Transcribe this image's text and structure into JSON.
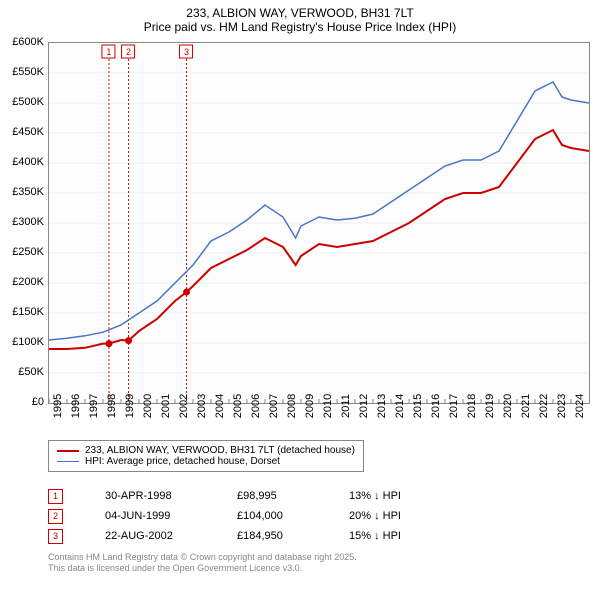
{
  "title": "233, ALBION WAY, VERWOOD, BH31 7LT",
  "subtitle": "Price paid vs. HM Land Registry's House Price Index (HPI)",
  "chart": {
    "type": "line",
    "background_color": "#ffffff",
    "grid_color": "#eeeeee",
    "border_color": "#888888",
    "ylim": [
      0,
      600
    ],
    "ytick_step": 50,
    "ytick_prefix": "£",
    "ytick_suffix": "K",
    "xlim": [
      1995,
      2025
    ],
    "xticks": [
      1995,
      1996,
      1997,
      1998,
      1999,
      2000,
      2001,
      2002,
      2003,
      2004,
      2005,
      2006,
      2007,
      2008,
      2009,
      2010,
      2011,
      2012,
      2013,
      2014,
      2015,
      2016,
      2017,
      2018,
      2019,
      2020,
      2021,
      2022,
      2023,
      2024
    ],
    "series": [
      {
        "name": "233, ALBION WAY, VERWOOD, BH31 7LT (detached house)",
        "color": "#cc0000",
        "line_width": 2,
        "data": [
          [
            1995,
            90
          ],
          [
            1996,
            90
          ],
          [
            1997,
            92
          ],
          [
            1998,
            99
          ],
          [
            1998.33,
            99
          ],
          [
            1999,
            105
          ],
          [
            1999.42,
            104
          ],
          [
            2000,
            120
          ],
          [
            2001,
            140
          ],
          [
            2002,
            170
          ],
          [
            2002.64,
            185
          ],
          [
            2003,
            195
          ],
          [
            2004,
            225
          ],
          [
            2005,
            240
          ],
          [
            2006,
            255
          ],
          [
            2007,
            275
          ],
          [
            2008,
            260
          ],
          [
            2008.7,
            230
          ],
          [
            2009,
            245
          ],
          [
            2010,
            265
          ],
          [
            2011,
            260
          ],
          [
            2012,
            265
          ],
          [
            2013,
            270
          ],
          [
            2014,
            285
          ],
          [
            2015,
            300
          ],
          [
            2016,
            320
          ],
          [
            2017,
            340
          ],
          [
            2018,
            350
          ],
          [
            2019,
            350
          ],
          [
            2020,
            360
          ],
          [
            2021,
            400
          ],
          [
            2022,
            440
          ],
          [
            2023,
            455
          ],
          [
            2023.5,
            430
          ],
          [
            2024,
            425
          ],
          [
            2025,
            420
          ]
        ]
      },
      {
        "name": "HPI: Average price, detached house, Dorset",
        "color": "#4a74c9",
        "line_width": 1.5,
        "data": [
          [
            1995,
            105
          ],
          [
            1996,
            108
          ],
          [
            1997,
            112
          ],
          [
            1998,
            118
          ],
          [
            1999,
            130
          ],
          [
            2000,
            150
          ],
          [
            2001,
            170
          ],
          [
            2002,
            200
          ],
          [
            2003,
            230
          ],
          [
            2004,
            270
          ],
          [
            2005,
            285
          ],
          [
            2006,
            305
          ],
          [
            2007,
            330
          ],
          [
            2008,
            310
          ],
          [
            2008.7,
            275
          ],
          [
            2009,
            295
          ],
          [
            2010,
            310
          ],
          [
            2011,
            305
          ],
          [
            2012,
            308
          ],
          [
            2013,
            315
          ],
          [
            2014,
            335
          ],
          [
            2015,
            355
          ],
          [
            2016,
            375
          ],
          [
            2017,
            395
          ],
          [
            2018,
            405
          ],
          [
            2019,
            405
          ],
          [
            2020,
            420
          ],
          [
            2021,
            470
          ],
          [
            2022,
            520
          ],
          [
            2023,
            535
          ],
          [
            2023.5,
            510
          ],
          [
            2024,
            505
          ],
          [
            2025,
            500
          ]
        ]
      }
    ],
    "event_lines": [
      {
        "x": 1998.33,
        "color": "#cc0000",
        "dash": "2,2",
        "label": "1"
      },
      {
        "x": 1999.42,
        "color": "#cc0000",
        "dash": "2,2",
        "label": "2"
      },
      {
        "x": 2002.64,
        "color": "#cc0000",
        "dash": "2,2",
        "label": "3"
      }
    ],
    "point_markers": [
      {
        "x": 1998.33,
        "y": 99,
        "color": "#cc0000"
      },
      {
        "x": 1999.42,
        "y": 104,
        "color": "#cc0000"
      },
      {
        "x": 2002.64,
        "y": 185,
        "color": "#cc0000"
      }
    ]
  },
  "legend": {
    "items": [
      {
        "color": "#cc0000",
        "width": 2,
        "label": "233, ALBION WAY, VERWOOD, BH31 7LT (detached house)"
      },
      {
        "color": "#4a74c9",
        "width": 1.5,
        "label": "HPI: Average price, detached house, Dorset"
      }
    ]
  },
  "events_table": {
    "rows": [
      {
        "marker": "1",
        "marker_color": "#cc0000",
        "date": "30-APR-1998",
        "price": "£98,995",
        "delta": "13% ↓ HPI"
      },
      {
        "marker": "2",
        "marker_color": "#cc0000",
        "date": "04-JUN-1999",
        "price": "£104,000",
        "delta": "20% ↓ HPI"
      },
      {
        "marker": "3",
        "marker_color": "#cc0000",
        "date": "22-AUG-2002",
        "price": "£184,950",
        "delta": "15% ↓ HPI"
      }
    ]
  },
  "footer_line1": "Contains HM Land Registry data © Crown copyright and database right 2025.",
  "footer_line2": "This data is licensed under the Open Government Licence v3.0."
}
